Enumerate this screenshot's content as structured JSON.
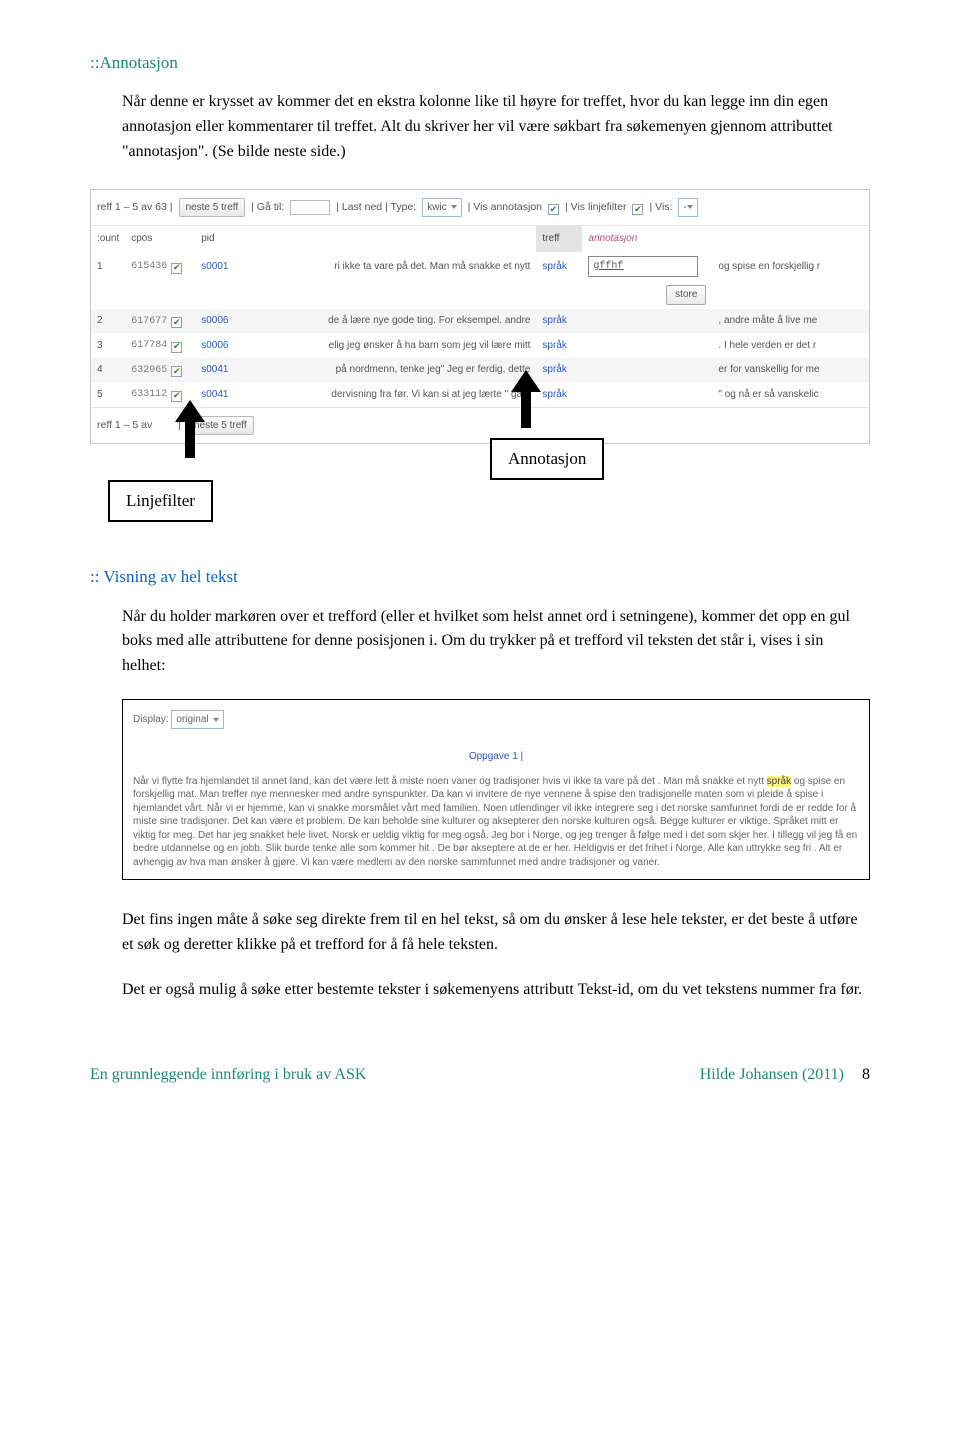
{
  "section1": {
    "head": "::Annotasjon",
    "p1": "Når denne er krysset av kommer det en ekstra kolonne like til høyre for treffet, hvor du kan legge inn din egen annotasjon eller kommentarer til treffet. Alt du skriver her vil være søkbart fra søkemenyen gjennom attributtet \"annotasjon\". (Se bilde neste side.)"
  },
  "shot1": {
    "topbar": {
      "count_label": "reff 1 – 5 av 63  | ",
      "next_btn": "neste 5 treff",
      "goto_label": "|  Gå til:",
      "lastned": "|  Last ned  |  Type:",
      "type_sel": "kwic",
      "vis_annot": "|  Vis annotasjon",
      "vis_linje": "|  Vis linjefilter",
      "vis": "|  Vis:",
      "vis_sel": "-"
    },
    "headers": {
      "count": ":ount",
      "cpos": "cpos",
      "pid": "pid",
      "treff": "treff",
      "annot": "annotasjon"
    },
    "rows": [
      {
        "n": "1",
        "cpos": "615436",
        "pid": "s0001",
        "pre": "ri ikke ta vare på det. Man må snakke et nytt",
        "word": "språk",
        "anno": "gffhf",
        "post": "og spise en forskjellig r"
      },
      {
        "n": "2",
        "cpos": "617677",
        "pid": "s0006",
        "pre": "de å lære nye gode ting. For eksempel. andre",
        "word": "språk",
        "anno": "",
        "post": ", andre måte å live me"
      },
      {
        "n": "3",
        "cpos": "617784",
        "pid": "s0006",
        "pre": "elig jeg ønsker å ha barn som jeg vil lære mitt",
        "word": "språk",
        "anno": "",
        "post": ". I hele verden er det r"
      },
      {
        "n": "4",
        "cpos": "632965",
        "pid": "s0041",
        "pre": "på nordmenn, tenke jeg\" Jeg er ferdig, dette",
        "word": "språk",
        "anno": "",
        "post": "er for vanskellig for me"
      },
      {
        "n": "5",
        "cpos": "633112",
        "pid": "s0041",
        "pre": "dervisning fra før. Vi kan si at jeg lærte \" gate",
        "word": "språk",
        "anno": "",
        "post": "\" og nå er så vanskelic"
      }
    ],
    "store_btn": "store",
    "botbar": {
      "count_label": "reff 1 – 5 av",
      "next_btn": "neste 5 treff"
    },
    "callouts": {
      "linje": "Linjefilter",
      "anno": "Annotasjon"
    }
  },
  "section2": {
    "head": ":: Visning av hel tekst",
    "p1": "Når du holder markøren over et trefford (eller et hvilket som helst annet ord i setningene), kommer det opp en gul boks med alle attributtene for denne posisjonen i. Om du trykker på et trefford vil teksten det står i, vises i sin helhet:"
  },
  "shot2": {
    "display_label": "Display:",
    "display_sel": "original",
    "oppg": "Oppgave 1 |",
    "pre": "Når vi flytte fra hjemlandet til annet land, kan det være lett å miste noen vaner og tradisjoner hvis vi ikke ta vare på det . Man må snakke et nytt ",
    "hl": "språk",
    "post": " og spise en forskjellig mat. Man treffer nye mennesker med andre synspunkter. Da kan vi invitere de nye vennene å spise den tradisjonelle maten som vi pleide å spise i hjemlandet vårt. Når vi er hjemme, kan vi snakke morsmålet vårt med familien. Noen utlendinger vil ikke integrere seg i det norske samfunnet fordi de er redde for å miste sine tradisjoner. Det kan være et problem. De kan beholde sine kulturer og aksepterer den norske kulturen også. Begge kulturer er viktige. Språket mitt er viktig for meg. Det har jeg snakket hele livet. Norsk er ueldig viktig for meg også. Jeg bor i Norge, og jeg trenger å følge med i det som skjer her. I tillegg vil jeg få en bedre utdannelse og en jobb. Slik burde tenke alle som kommer hit . De bør akseptere at de er her. Heldigvis er det frihet i Norge. Alle kan uttrykke seg fri . Alt er avhengig av hva man ønsker å gjøre. Vi kan være medlem av den norske sammfunnet med andre tradisjoner og vaner."
  },
  "section3": {
    "p1": "Det fins ingen måte å søke seg direkte frem til en hel tekst, så om du ønsker å lese hele tekster, er det beste å utføre et søk og deretter klikke på et trefford for å få hele teksten.",
    "p2": "Det er også mulig å søke etter bestemte tekster i søkemenyens attributt Tekst-id, om du vet tekstens nummer fra før."
  },
  "footer": {
    "left": "En grunnleggende innføring i bruk av ASK",
    "right": "Hilde Johansen (2011)",
    "page": "8"
  }
}
